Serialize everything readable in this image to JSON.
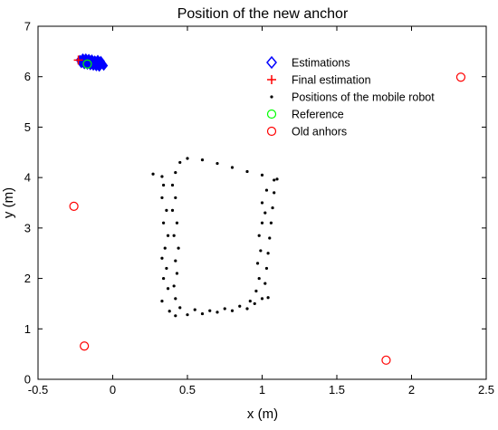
{
  "chart_data": {
    "type": "scatter",
    "title": "Position of the new anchor",
    "xlabel": "x (m)",
    "ylabel": "y (m)",
    "xlim": [
      -0.5,
      2.5
    ],
    "ylim": [
      0,
      7
    ],
    "x_ticks": [
      "-0.5",
      "0",
      "0.5",
      "1",
      "1.5",
      "2",
      "2.5"
    ],
    "y_ticks": [
      "0",
      "1",
      "2",
      "3",
      "4",
      "5",
      "6",
      "7"
    ],
    "grid": false,
    "legend": {
      "placement": "top-right",
      "entries": [
        {
          "label": "Estimations",
          "marker": "diamond",
          "color": "#0000ff"
        },
        {
          "label": "Final estimation",
          "marker": "plus",
          "color": "#ff0000"
        },
        {
          "label": "Positions of the mobile robot",
          "marker": "dot",
          "color": "#000000"
        },
        {
          "label": "Reference",
          "marker": "circle",
          "color": "#00ff00"
        },
        {
          "label": "Old anhors",
          "marker": "circle",
          "color": "#ff0000"
        }
      ]
    },
    "series": [
      {
        "name": "Estimations",
        "color": "#0000ff",
        "points": [
          [
            -0.22,
            6.33
          ],
          [
            -0.2,
            6.3
          ],
          [
            -0.19,
            6.32
          ],
          [
            -0.18,
            6.29
          ],
          [
            -0.17,
            6.31
          ],
          [
            -0.16,
            6.28
          ],
          [
            -0.15,
            6.3
          ],
          [
            -0.14,
            6.27
          ],
          [
            -0.13,
            6.29
          ],
          [
            -0.12,
            6.26
          ],
          [
            -0.11,
            6.28
          ],
          [
            -0.1,
            6.25
          ],
          [
            -0.09,
            6.27
          ],
          [
            -0.08,
            6.24
          ],
          [
            -0.07,
            6.26
          ],
          [
            -0.21,
            6.27
          ],
          [
            -0.19,
            6.25
          ],
          [
            -0.17,
            6.24
          ],
          [
            -0.15,
            6.23
          ],
          [
            -0.13,
            6.22
          ],
          [
            -0.11,
            6.21
          ],
          [
            -0.09,
            6.2
          ],
          [
            -0.12,
            6.32
          ],
          [
            -0.14,
            6.34
          ],
          [
            -0.1,
            6.33
          ],
          [
            -0.08,
            6.31
          ],
          [
            -0.16,
            6.35
          ],
          [
            -0.18,
            6.36
          ],
          [
            -0.2,
            6.36
          ],
          [
            -0.06,
            6.22
          ]
        ]
      },
      {
        "name": "Final estimation",
        "color": "#ff0000",
        "points": [
          [
            -0.23,
            6.33
          ]
        ]
      },
      {
        "name": "Positions of the mobile robot",
        "color": "#000000",
        "points": [
          [
            0.27,
            4.07
          ],
          [
            0.33,
            4.02
          ],
          [
            0.34,
            3.85
          ],
          [
            0.33,
            3.6
          ],
          [
            0.36,
            3.35
          ],
          [
            0.34,
            3.1
          ],
          [
            0.37,
            2.85
          ],
          [
            0.35,
            2.6
          ],
          [
            0.33,
            2.4
          ],
          [
            0.36,
            2.2
          ],
          [
            0.34,
            2.0
          ],
          [
            0.37,
            1.8
          ],
          [
            0.33,
            1.55
          ],
          [
            0.38,
            1.35
          ],
          [
            0.42,
            1.26
          ],
          [
            0.5,
            1.28
          ],
          [
            0.6,
            1.3
          ],
          [
            0.7,
            1.33
          ],
          [
            0.8,
            1.36
          ],
          [
            0.9,
            1.4
          ],
          [
            0.95,
            1.5
          ],
          [
            0.96,
            1.75
          ],
          [
            0.98,
            2.0
          ],
          [
            0.97,
            2.3
          ],
          [
            0.99,
            2.55
          ],
          [
            0.98,
            2.85
          ],
          [
            1.0,
            3.1
          ],
          [
            1.02,
            3.3
          ],
          [
            1.0,
            3.5
          ],
          [
            1.03,
            3.75
          ],
          [
            1.08,
            3.95
          ],
          [
            1.0,
            4.05
          ],
          [
            0.9,
            4.12
          ],
          [
            0.8,
            4.2
          ],
          [
            0.7,
            4.28
          ],
          [
            0.6,
            4.35
          ],
          [
            0.5,
            4.38
          ],
          [
            0.45,
            4.3
          ],
          [
            0.42,
            4.1
          ],
          [
            0.4,
            3.85
          ],
          [
            0.42,
            3.6
          ],
          [
            0.4,
            3.35
          ],
          [
            0.43,
            3.1
          ],
          [
            0.41,
            2.85
          ],
          [
            0.44,
            2.6
          ],
          [
            0.42,
            2.35
          ],
          [
            0.43,
            2.1
          ],
          [
            0.41,
            1.85
          ],
          [
            0.42,
            1.6
          ],
          [
            0.45,
            1.42
          ],
          [
            0.55,
            1.38
          ],
          [
            0.65,
            1.36
          ],
          [
            0.75,
            1.4
          ],
          [
            0.85,
            1.45
          ],
          [
            0.92,
            1.55
          ],
          [
            1.0,
            1.6
          ],
          [
            1.04,
            1.62
          ],
          [
            1.02,
            1.9
          ],
          [
            1.03,
            2.2
          ],
          [
            1.04,
            2.5
          ],
          [
            1.05,
            2.8
          ],
          [
            1.06,
            3.1
          ],
          [
            1.07,
            3.4
          ],
          [
            1.08,
            3.7
          ],
          [
            1.1,
            3.97
          ]
        ]
      },
      {
        "name": "Reference",
        "color": "#00ff00",
        "points": [
          [
            -0.17,
            6.25
          ]
        ]
      },
      {
        "name": "Old anhors",
        "color": "#ff0000",
        "points": [
          [
            -0.26,
            3.43
          ],
          [
            -0.19,
            0.66
          ],
          [
            1.83,
            0.38
          ],
          [
            2.33,
            5.99
          ]
        ]
      }
    ]
  }
}
